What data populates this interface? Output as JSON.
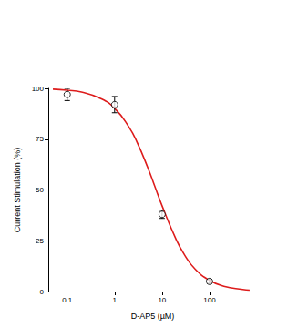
{
  "chart_data": {
    "type": "scatter",
    "x_label": "D-AP5 (µM)",
    "y_label": "Current Stimulation (%)",
    "log": "x",
    "grid": false,
    "xlim": [
      0.04,
      1000
    ],
    "xticks": [
      0.1,
      1,
      10,
      100
    ],
    "ylim": [
      0,
      100
    ],
    "yticks": [
      0,
      25,
      50,
      75,
      100
    ],
    "x": [
      0.1,
      1,
      10,
      100
    ],
    "values": [
      97,
      92,
      38,
      5
    ],
    "errors": [
      3,
      4,
      2,
      1
    ],
    "color": "#000000",
    "marker": "circle-open",
    "fit": {
      "type": "line",
      "color": "#dd1c1c",
      "line_style": "solid",
      "x": [
        0.05,
        0.1,
        0.2,
        0.5,
        1,
        2,
        3,
        5,
        7,
        10,
        20,
        30,
        50,
        100,
        200,
        500,
        700
      ],
      "values": [
        99.6,
        99.1,
        98.2,
        95.1,
        90.2,
        81,
        73.3,
        61,
        51.9,
        42.2,
        25.4,
        17.9,
        11,
        5.5,
        2.6,
        1,
        0.7
      ]
    }
  }
}
